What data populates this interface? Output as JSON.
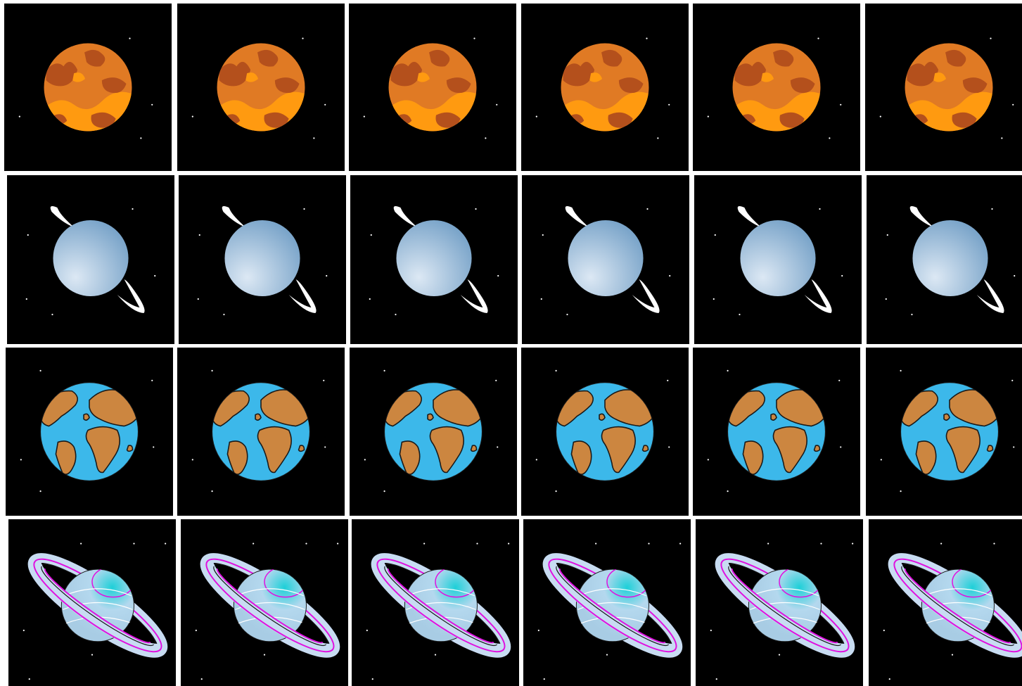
{
  "board": {
    "rows": [
      {
        "planet": "mars-icon",
        "cards": 6
      },
      {
        "planet": "uranus-icon",
        "cards": 6
      },
      {
        "planet": "earth-icon",
        "cards": 6
      },
      {
        "planet": "saturn-icon",
        "cards": 6
      }
    ]
  },
  "colors": {
    "background": "#000000",
    "gap": "#ffffff",
    "mars": "#e07a24",
    "mars_dark": "#b4501c",
    "mars_light": "#ff9a10",
    "uranus": "#9cbcd8",
    "earth_ocean": "#3cb8ea",
    "earth_land": "#cc8640",
    "saturn_body": "#b4d8ee",
    "saturn_cap": "#1ed0d8",
    "saturn_ring": "#c8dcf2",
    "saturn_ring_accent": "#e010e0"
  }
}
